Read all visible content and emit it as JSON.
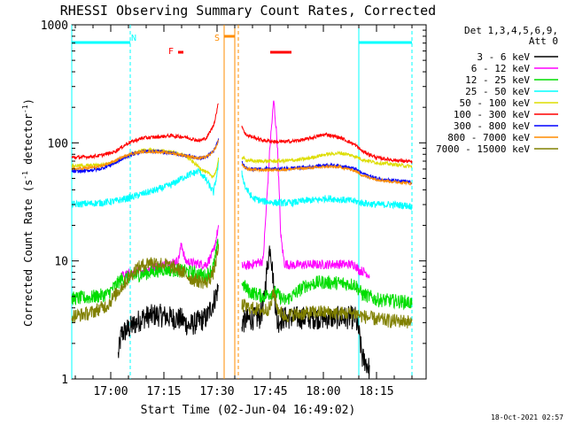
{
  "chart_data": {
    "type": "line",
    "title": "RHESSI Observing Summary Count Rates, Corrected",
    "xlabel": "Start Time (02-Jun-04 16:49:02)",
    "ylabel_main": "Corrected Count Rate (s",
    "ylabel_sup1": "-1",
    "ylabel_mid": " detector",
    "ylabel_sup2": "-1",
    "ylabel_end": ")",
    "yscale": "log",
    "x_minutes_start": 0,
    "xlim_minutes": [
      0,
      100
    ],
    "ylim": [
      1,
      1000
    ],
    "x_ticks": [
      {
        "label": "17:00",
        "minute": 11
      },
      {
        "label": "17:15",
        "minute": 26
      },
      {
        "label": "17:30",
        "minute": 41
      },
      {
        "label": "17:45",
        "minute": 56
      },
      {
        "label": "18:00",
        "minute": 71
      },
      {
        "label": "18:15",
        "minute": 86
      }
    ],
    "y_ticks": [
      {
        "label": "1",
        "value": 1
      },
      {
        "label": "10",
        "value": 10
      },
      {
        "label": "100",
        "value": 100
      },
      {
        "label": "1000",
        "value": 1000
      }
    ],
    "legend_header": [
      "Det 1,3,4,5,6,9,",
      "Att 0"
    ],
    "series": [
      {
        "name": "3 - 6 keV",
        "color": "#000000",
        "x": [
          0,
          12,
          13,
          14,
          17,
          20,
          24,
          28,
          31,
          33,
          38,
          40,
          41.5,
          42,
          48,
          50,
          53,
          54,
          55,
          56,
          57,
          58,
          59,
          60,
          61,
          63,
          65,
          70,
          75,
          80,
          81,
          82,
          83,
          84,
          85
        ],
        "values": [
          null,
          null,
          1.5,
          2.4,
          2.8,
          3.3,
          3.5,
          3.3,
          3.2,
          2.8,
          3.3,
          4.5,
          6,
          null,
          3,
          3.2,
          3.3,
          4,
          8,
          14,
          6,
          3,
          3.2,
          3.3,
          3.3,
          3.3,
          3.3,
          3.3,
          3.3,
          3.3,
          2.5,
          1.5,
          1.4,
          1.2,
          null
        ]
      },
      {
        "name": "6 - 12 keV",
        "color": "#ff00ff",
        "x": [
          13,
          14,
          18,
          22,
          27,
          30,
          31,
          32,
          34,
          38,
          40,
          41.5,
          42,
          48,
          50,
          54,
          56,
          57,
          58,
          59,
          60,
          62,
          66,
          70,
          75,
          80,
          81,
          82,
          83,
          84,
          85
        ],
        "values": [
          null,
          7.5,
          8,
          8.6,
          9.5,
          10,
          14,
          10,
          9.6,
          9.3,
          12,
          20,
          null,
          9,
          9.2,
          10,
          100,
          230,
          100,
          16,
          9.5,
          9.2,
          9.3,
          9.3,
          9.4,
          9.3,
          8.3,
          8.2,
          8,
          7.5,
          null
        ]
      },
      {
        "name": "12 - 25 keV",
        "color": "#00dd00",
        "x": [
          0,
          5,
          10,
          14,
          18,
          22,
          26,
          30,
          34,
          38,
          40,
          41.5,
          42,
          48,
          50,
          54,
          56,
          57,
          58,
          59,
          60,
          62,
          66,
          70,
          75,
          80,
          82,
          84,
          86,
          90,
          94,
          96
        ],
        "values": [
          4.8,
          4.9,
          5.2,
          7,
          7.5,
          8,
          8.5,
          8.3,
          8,
          7.4,
          9,
          15,
          null,
          6.5,
          5.5,
          5,
          5.3,
          5.5,
          5.2,
          4.9,
          4.6,
          5,
          6.2,
          6.6,
          6.5,
          6.3,
          5.2,
          5,
          4.7,
          4.6,
          4.5,
          4.4
        ]
      },
      {
        "name": "25 - 50 keV",
        "color": "#00ffff",
        "x": [
          0,
          4,
          8,
          12,
          16,
          20,
          24,
          28,
          32,
          36,
          38,
          40,
          41,
          41.5,
          42,
          48,
          49,
          51,
          54,
          58,
          62,
          66,
          70,
          72,
          76,
          80,
          82,
          86,
          90,
          94,
          96
        ],
        "values": [
          30,
          30.5,
          31,
          32,
          34,
          37,
          40,
          44,
          52,
          58,
          48,
          38,
          55,
          70,
          null,
          55,
          42,
          34,
          32,
          31,
          31,
          32.5,
          33,
          34,
          33,
          32,
          31,
          30,
          30,
          29.5,
          29
        ]
      },
      {
        "name": "50 - 100 keV",
        "color": "#dddd00",
        "x": [
          0,
          4,
          8,
          12,
          16,
          20,
          24,
          28,
          32,
          36,
          38,
          40,
          41,
          41.5,
          42,
          48,
          49,
          51,
          54,
          58,
          62,
          66,
          70,
          72,
          76,
          80,
          82,
          86,
          90,
          94,
          96
        ],
        "values": [
          64,
          64,
          65,
          68,
          78,
          87,
          86,
          84,
          78,
          62,
          56,
          52,
          60,
          80,
          null,
          76,
          72,
          70,
          70,
          70,
          71,
          73,
          78,
          80,
          82,
          77,
          72,
          68,
          66,
          64,
          63
        ]
      },
      {
        "name": "100 - 300 keV",
        "color": "#ff0000",
        "x": [
          0,
          4,
          8,
          12,
          16,
          20,
          24,
          28,
          32,
          36,
          38,
          40,
          41,
          41.5,
          42,
          48,
          49,
          51,
          54,
          58,
          62,
          66,
          70,
          72,
          76,
          80,
          82,
          86,
          90,
          94,
          96
        ],
        "values": [
          75,
          76,
          78,
          84,
          100,
          110,
          112,
          115,
          112,
          104,
          110,
          140,
          190,
          230,
          null,
          140,
          118,
          112,
          105,
          102,
          103,
          107,
          115,
          118,
          110,
          96,
          85,
          75,
          72,
          70,
          69
        ]
      },
      {
        "name": "300 - 800 keV",
        "color": "#0000ff",
        "x": [
          0,
          4,
          8,
          12,
          16,
          20,
          24,
          28,
          32,
          36,
          38,
          40,
          41,
          41.5,
          42,
          48,
          49,
          51,
          54,
          58,
          62,
          66,
          70,
          72,
          76,
          80,
          82,
          86,
          90,
          94,
          96
        ],
        "values": [
          57,
          58,
          60,
          67,
          78,
          85,
          85,
          82,
          78,
          74,
          76,
          85,
          98,
          110,
          null,
          68,
          62,
          60,
          60,
          60,
          61,
          62,
          64,
          65,
          64,
          60,
          55,
          50,
          48,
          47,
          46
        ]
      },
      {
        "name": "800 - 7000 keV",
        "color": "#ff8c00",
        "x": [
          0,
          4,
          8,
          12,
          16,
          20,
          24,
          28,
          32,
          36,
          38,
          40,
          41,
          41.5,
          42,
          48,
          49,
          51,
          54,
          58,
          62,
          66,
          70,
          72,
          76,
          80,
          82,
          86,
          90,
          94,
          96
        ],
        "values": [
          60,
          61,
          63,
          70,
          80,
          84,
          84,
          82,
          78,
          74,
          76,
          84,
          96,
          108,
          null,
          66,
          61,
          59,
          59,
          59,
          60,
          61,
          62,
          63,
          62,
          58,
          53,
          49,
          47,
          46,
          45
        ]
      },
      {
        "name": "7000 - 15000 keV",
        "color": "#808000",
        "x": [
          0,
          5,
          10,
          14,
          18,
          22,
          26,
          30,
          34,
          38,
          40,
          41.5,
          42,
          48,
          50,
          54,
          56,
          57,
          58,
          60,
          62,
          66,
          70,
          75,
          80,
          82,
          84,
          86,
          90,
          94,
          96
        ],
        "values": [
          3.4,
          3.6,
          4.2,
          6,
          8.5,
          9.8,
          9.4,
          8.5,
          7,
          6.5,
          8,
          13,
          null,
          4.2,
          4,
          3.8,
          4,
          5.5,
          4,
          3.4,
          3.5,
          3.6,
          3.7,
          3.6,
          3.6,
          3.4,
          3.3,
          3.2,
          3.1,
          3.1,
          3.0
        ]
      }
    ],
    "annotations": [
      {
        "label": "N",
        "color": "#00ffff",
        "x": 17.5,
        "bars": [
          [
            0,
            16.5
          ],
          [
            81,
            96
          ]
        ]
      },
      {
        "label": "F",
        "color": "#ff0000",
        "x": 28,
        "bars": [
          [
            30,
            31.5
          ],
          [
            56,
            62
          ]
        ]
      },
      {
        "label": "S",
        "color": "#ff8c00",
        "x": 41,
        "bars": [
          [
            43,
            46
          ]
        ]
      }
    ],
    "vlines": [
      {
        "x": 0,
        "color": "#00ffff",
        "style": "solid"
      },
      {
        "x": 16.5,
        "color": "#00ffff",
        "style": "dashed"
      },
      {
        "x": 81,
        "color": "#00ffff",
        "style": "solid"
      },
      {
        "x": 96,
        "color": "#00ffff",
        "style": "dashed"
      },
      {
        "x": 43,
        "color": "#ff8c00",
        "style": "solid"
      },
      {
        "x": 46,
        "color": "#ff8c00",
        "style": "solid"
      },
      {
        "x": 47,
        "color": "#ff8c00",
        "style": "dashed"
      }
    ],
    "timestamp": "18-Oct-2021 02:57"
  }
}
